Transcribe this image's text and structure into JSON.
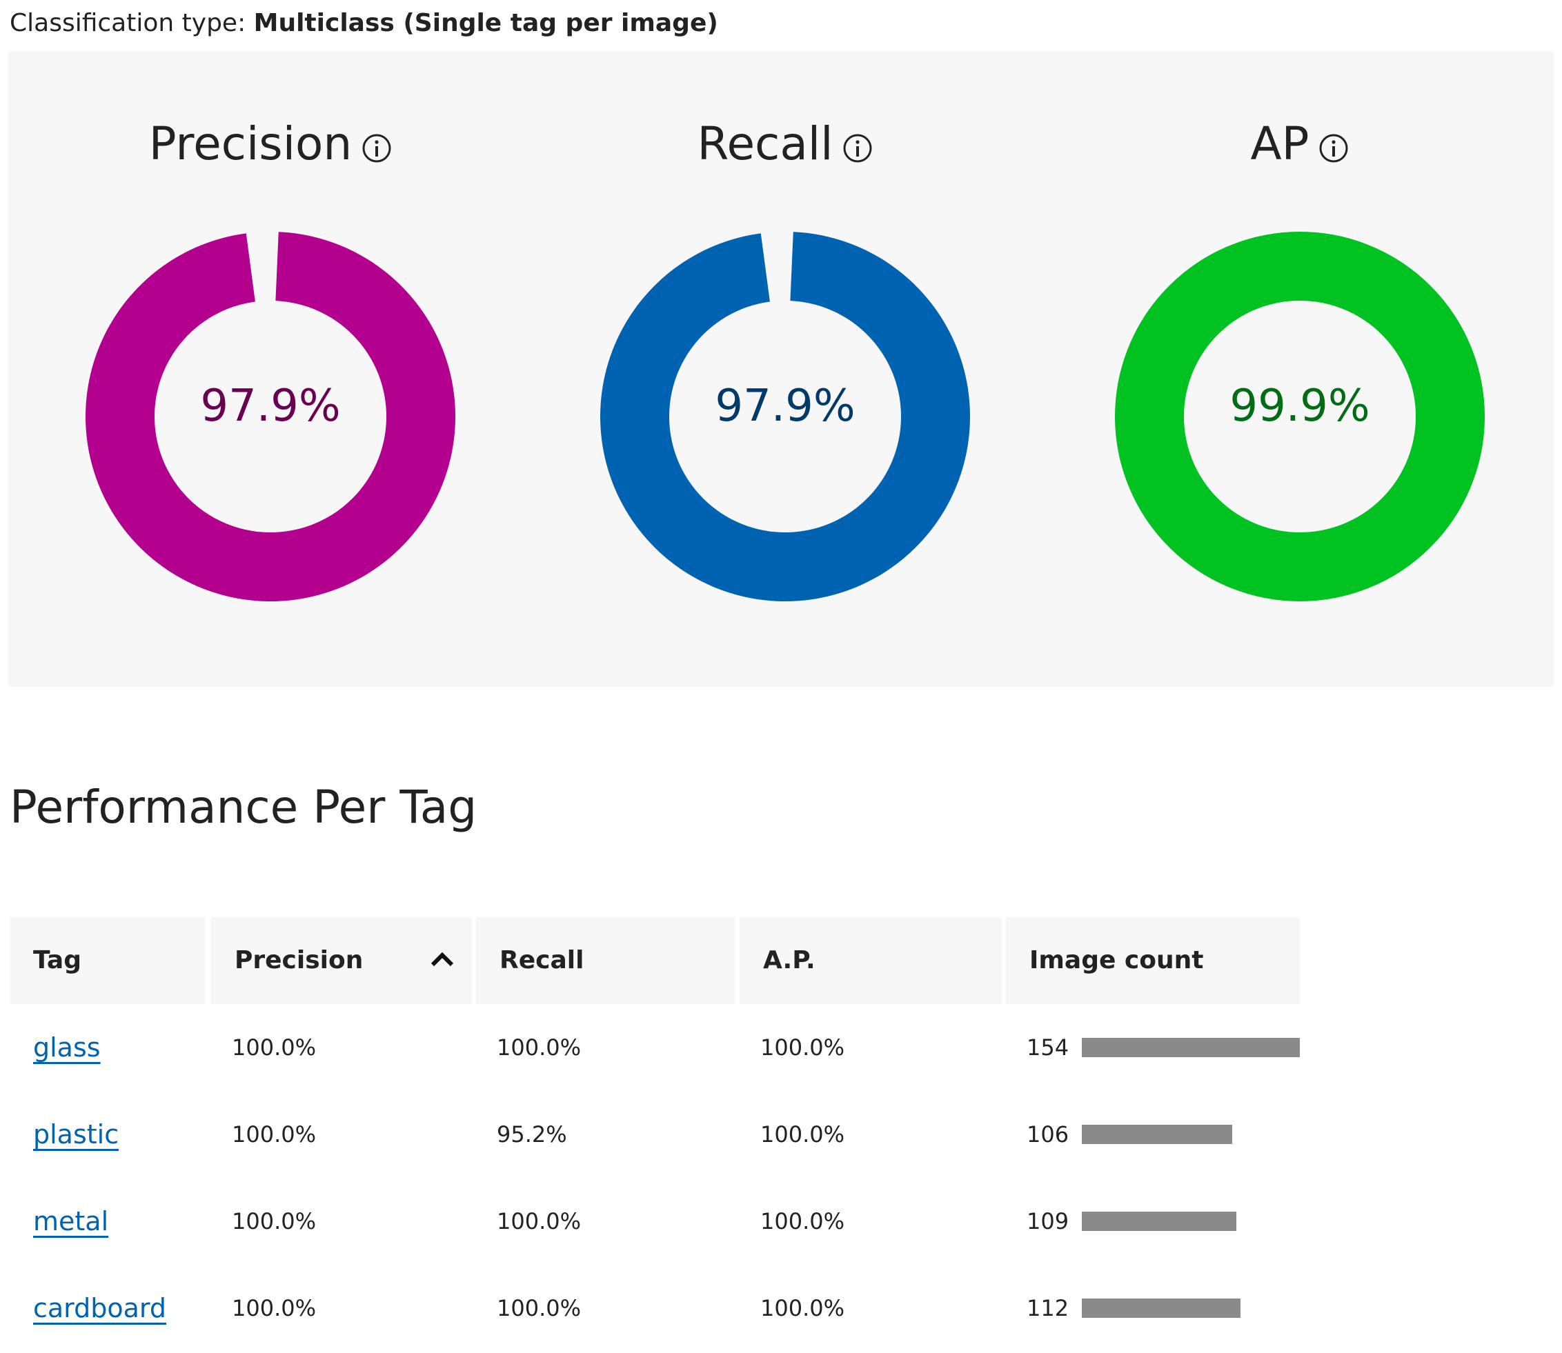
{
  "classification": {
    "label": "Classification type: ",
    "value": "Multiclass (Single tag per image)"
  },
  "metrics": [
    {
      "title": "Precision",
      "value_text": "97.9%",
      "fraction": 0.979,
      "ring_color": "#b4008f",
      "text_color": "#6a0052"
    },
    {
      "title": "Recall",
      "value_text": "97.9%",
      "fraction": 0.979,
      "ring_color": "#0063b1",
      "text_color": "#003a6a"
    },
    {
      "title": "AP",
      "value_text": "99.9%",
      "fraction": 0.999,
      "ring_color": "#00c322",
      "text_color": "#006d14"
    }
  ],
  "section_title": "Performance Per Tag",
  "table": {
    "headers": [
      "Tag",
      "Precision",
      "Recall",
      "A.P.",
      "Image count"
    ],
    "sort_column": "Precision",
    "sort_direction": "ascending",
    "rows": [
      {
        "tag": "glass",
        "precision": "100.0%",
        "recall": "100.0%",
        "ap": "100.0%",
        "count": "154",
        "count_value": 154
      },
      {
        "tag": "plastic",
        "precision": "100.0%",
        "recall": "95.2%",
        "ap": "100.0%",
        "count": "106",
        "count_value": 106
      },
      {
        "tag": "metal",
        "precision": "100.0%",
        "recall": "100.0%",
        "ap": "100.0%",
        "count": "109",
        "count_value": 109
      },
      {
        "tag": "cardboard",
        "precision": "100.0%",
        "recall": "100.0%",
        "ap": "100.0%",
        "count": "112",
        "count_value": 112
      }
    ]
  },
  "colors": {
    "panel_background": "#f7f7f7",
    "link": "#0063b1",
    "count_bar": "#8a8a8a"
  },
  "icons": {
    "info": "info-circle-icon",
    "sort": "chevron-up-icon"
  }
}
